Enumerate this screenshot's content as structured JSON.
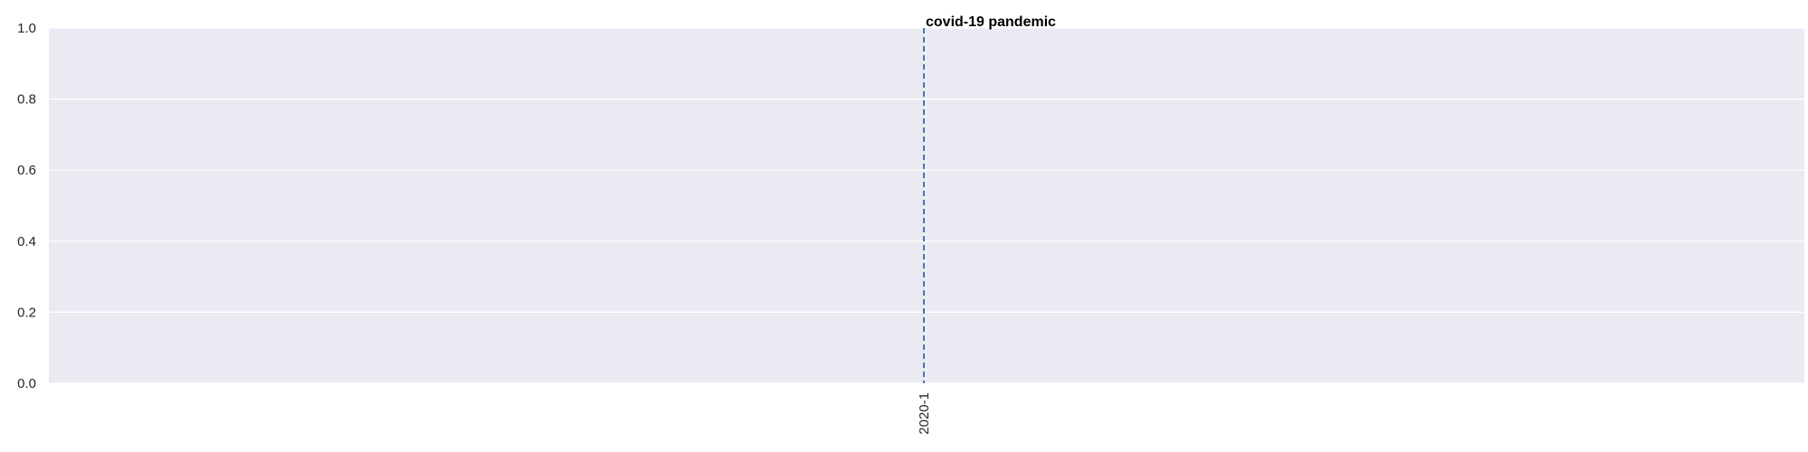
{
  "chart_data": {
    "type": "line",
    "title": "",
    "xlabel": "",
    "ylabel": "",
    "ylim": [
      0,
      1
    ],
    "y_ticks": [
      0.0,
      0.2,
      0.4,
      0.6,
      0.8,
      1.0
    ],
    "y_tick_labels": [
      "0.0",
      "0.2",
      "0.4",
      "0.6",
      "0.8",
      "1.0"
    ],
    "x_ticks": [
      "2020-1"
    ],
    "series": [],
    "grid": true,
    "annotations": [
      {
        "type": "vline",
        "x": "2020-1",
        "label": "covid-19 pandemic",
        "style": "dashed"
      }
    ]
  },
  "colors": {
    "plot_background": "#eaeaf2",
    "grid": "#ffffff",
    "annotation_line": "#4c72b0",
    "text": "#262626"
  }
}
